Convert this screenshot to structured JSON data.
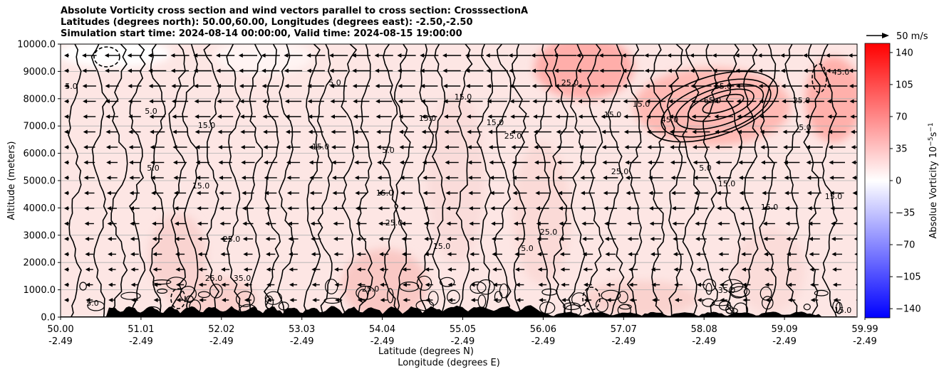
{
  "title": {
    "line1": "Absolute Vorticity cross section and wind vectors parallel to cross section: CrosssectionA",
    "line2": "Latitudes (degrees north): 50.00,60.00, Longitudes (degrees east): -2.50,-2.50",
    "line3": "Simulation start time: 2024-08-14 00:00:00, Valid time: 2024-08-15 19:00:00"
  },
  "quiver_key": {
    "label": "50 m/s"
  },
  "colorbar": {
    "label": "Absolue Vorticity 10",
    "label_exp": "−5",
    "label_unit": "s",
    "label_unit_exp": "−1",
    "min": -150,
    "max": 150,
    "ticks": [
      140,
      105,
      70,
      35,
      0,
      -35,
      -70,
      -105,
      -140
    ],
    "tick_labels": [
      "140",
      "105",
      "70",
      "35",
      "0",
      "−35",
      "−70",
      "−105",
      "−140"
    ],
    "color_min": "#0000ff",
    "color_mid": "#ffffff",
    "color_max": "#ff0000"
  },
  "chart_data": {
    "type": "contour",
    "ylim": [
      0,
      10000
    ],
    "y_ticks": [
      0,
      1000,
      2000,
      3000,
      4000,
      5000,
      6000,
      7000,
      8000,
      9000,
      10000
    ],
    "y_tick_labels": [
      "0.0",
      "1000.0",
      "2000.0",
      "3000.0",
      "4000.0",
      "5000.0",
      "6000.0",
      "7000.0",
      "8000.0",
      "9000.0",
      "10000.0"
    ],
    "ylabel": "Altitude (meters)",
    "x_tick_lat": [
      "50.00",
      "51.01",
      "52.02",
      "53.03",
      "54.04",
      "55.05",
      "56.06",
      "57.07",
      "58.08",
      "59.09",
      "59.99"
    ],
    "x_tick_lon": [
      "-2.49",
      "-2.49",
      "-2.49",
      "-2.49",
      "-2.49",
      "-2.49",
      "-2.49",
      "-2.49",
      "-2.49",
      "-2.49",
      "-2.49"
    ],
    "xlabel_lat": "Latitude (degrees N)",
    "xlabel_lon": "Longitude (degrees E)",
    "contour_levels_labeled": [
      "5.0",
      "15.0",
      "25.0",
      "35.0",
      "45.0",
      "55.0",
      "65.0"
    ],
    "wind": "westward arrows (parallel to section), strongest aloft"
  }
}
